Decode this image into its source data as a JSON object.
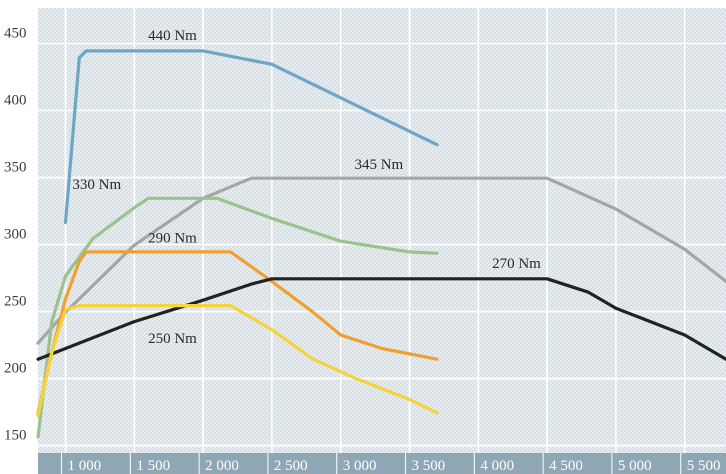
{
  "chart_data": {
    "type": "line",
    "xlim": [
      800,
      5800
    ],
    "ylim": [
      140,
      472
    ],
    "x_ticks": [
      1000,
      1500,
      2000,
      2500,
      3000,
      3500,
      4000,
      4500,
      5000,
      5500
    ],
    "x_tick_labels": [
      "1 000",
      "1 500",
      "2 000",
      "2 500",
      "3 000",
      "3 500",
      "4 000",
      "4 500",
      "5 000",
      "5 500"
    ],
    "y_ticks": [
      150,
      200,
      250,
      300,
      350,
      400,
      450
    ],
    "y_tick_labels": [
      "150",
      "200",
      "250",
      "300",
      "350",
      "400",
      "450"
    ],
    "grid": true,
    "colors": {
      "background": "#e6ecef",
      "hatch": "#d0d9de",
      "grid": "#ffffff",
      "axis_band": "#8fa6b5"
    },
    "series": [
      {
        "color": "#6ea6c6",
        "label": "440 Nm",
        "label_at": [
          1600,
          448
        ],
        "points": [
          [
            1000,
            312
          ],
          [
            1100,
            435
          ],
          [
            1150,
            440
          ],
          [
            2000,
            440
          ],
          [
            2500,
            430
          ],
          [
            3000,
            405
          ],
          [
            3500,
            380
          ],
          [
            3700,
            370
          ]
        ]
      },
      {
        "color": "#a5a5a5",
        "label": "345 Nm",
        "label_at": [
          3100,
          352
        ],
        "points": [
          [
            800,
            222
          ],
          [
            1000,
            245
          ],
          [
            1500,
            295
          ],
          [
            2000,
            330
          ],
          [
            2350,
            345
          ],
          [
            4500,
            345
          ],
          [
            5000,
            322
          ],
          [
            5500,
            292
          ],
          [
            5800,
            268
          ]
        ]
      },
      {
        "color": "#9bc28e",
        "label": "330 Nm",
        "label_at": [
          1050,
          337
        ],
        "points": [
          [
            800,
            152
          ],
          [
            900,
            238
          ],
          [
            1000,
            272
          ],
          [
            1200,
            300
          ],
          [
            1500,
            323
          ],
          [
            1600,
            330
          ],
          [
            2100,
            330
          ],
          [
            2500,
            315
          ],
          [
            3000,
            298
          ],
          [
            3500,
            290
          ],
          [
            3700,
            289
          ]
        ]
      },
      {
        "color": "#f0a030",
        "label": "290 Nm",
        "label_at": [
          1600,
          297
        ],
        "points": [
          [
            800,
            170
          ],
          [
            900,
            215
          ],
          [
            1000,
            255
          ],
          [
            1100,
            283
          ],
          [
            1150,
            290
          ],
          [
            2200,
            290
          ],
          [
            2500,
            268
          ],
          [
            2800,
            245
          ],
          [
            3000,
            228
          ],
          [
            3300,
            218
          ],
          [
            3700,
            210
          ]
        ]
      },
      {
        "color": "#222222",
        "label": "270 Nm",
        "label_at": [
          4100,
          278
        ],
        "points": [
          [
            800,
            210
          ],
          [
            1500,
            238
          ],
          [
            2000,
            254
          ],
          [
            2350,
            266
          ],
          [
            2500,
            270
          ],
          [
            4500,
            270
          ],
          [
            4800,
            260
          ],
          [
            5000,
            248
          ],
          [
            5500,
            228
          ],
          [
            5800,
            210
          ]
        ]
      },
      {
        "color": "#f5d33c",
        "label": "250 Nm",
        "label_at": [
          1600,
          222
        ],
        "points": [
          [
            800,
            168
          ],
          [
            900,
            215
          ],
          [
            1000,
            247
          ],
          [
            1100,
            250
          ],
          [
            2200,
            250
          ],
          [
            2500,
            232
          ],
          [
            2800,
            210
          ],
          [
            3100,
            196
          ],
          [
            3500,
            180
          ],
          [
            3700,
            170
          ]
        ]
      }
    ]
  }
}
